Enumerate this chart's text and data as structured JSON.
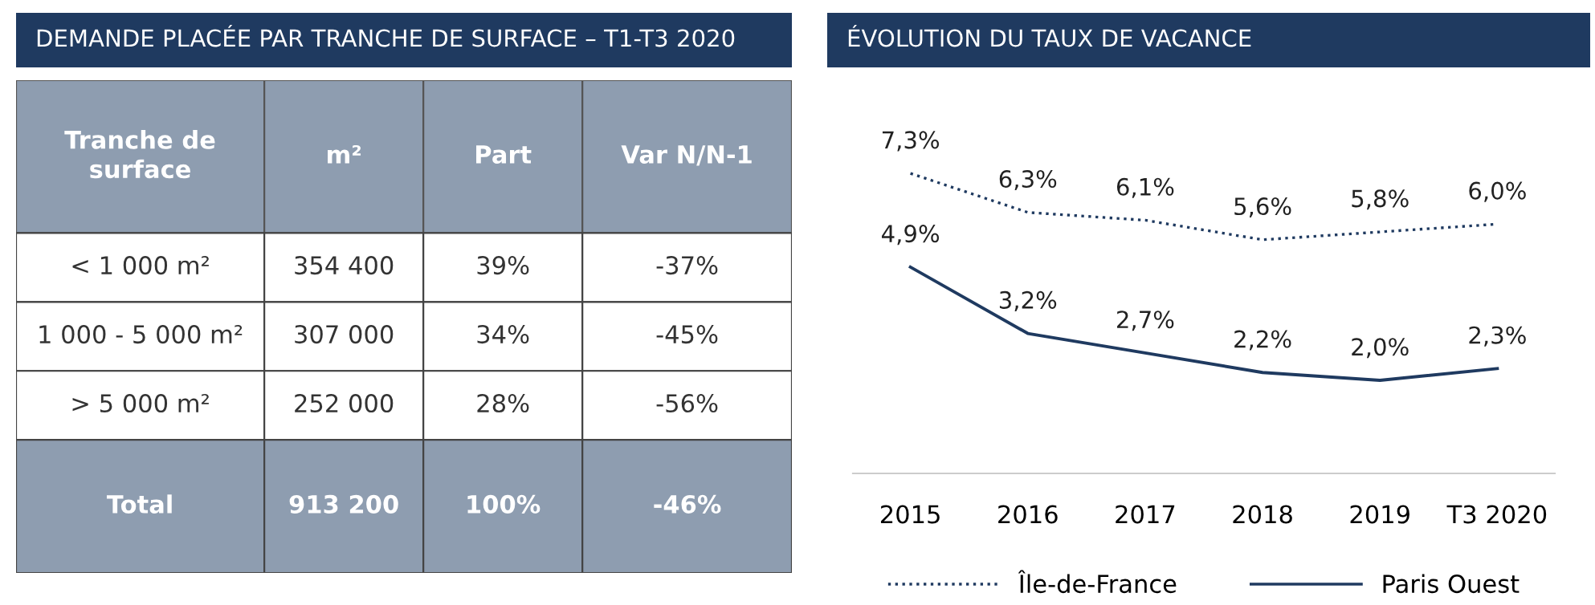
{
  "chart_data": [
    {
      "type": "other",
      "title": "DEMANDE PLACÉE PAR TRANCHE DE SURFACE – T1-T3 2020",
      "categories": [
        "Tranche de\nsurface",
        "m²",
        "Part",
        "Var N/N-1"
      ],
      "cell_labels": [
        [
          "< 1 000 m²",
          "354 400",
          "39%",
          "-37%"
        ],
        [
          "1 000 - 5 000 m²",
          "307 000",
          "34%",
          "-45%"
        ],
        [
          "> 5 000 m²",
          "252 000",
          "28%",
          "-56%"
        ],
        [
          "Total",
          "913 200",
          "100%",
          "-46%"
        ]
      ]
    },
    {
      "type": "line",
      "title": "ÉVOLUTION DU TAUX DE VACANCE",
      "categories": [
        "2015",
        "2016",
        "2017",
        "2018",
        "2019",
        "T3 2020"
      ],
      "series": [
        {
          "name": "Île-de-France",
          "color": "#1f3a60",
          "line_style": "dotted",
          "values": [
            7.3,
            6.3,
            6.1,
            5.6,
            5.8,
            6.0
          ],
          "value_labels": [
            "7,3%",
            "6,3%",
            "6,1%",
            "5,6%",
            "5,8%",
            "6,0%"
          ]
        },
        {
          "name": "Paris Ouest",
          "color": "#1f3a60",
          "line_style": "solid",
          "values": [
            4.9,
            3.2,
            2.7,
            2.2,
            2.0,
            2.3
          ],
          "value_labels": [
            "4,9%",
            "3,2%",
            "2,7%",
            "2,2%",
            "2,0%",
            "2,3%"
          ]
        }
      ],
      "tick_labels": "x",
      "grid": false,
      "legend": "bottom",
      "marker": "none"
    }
  ]
}
